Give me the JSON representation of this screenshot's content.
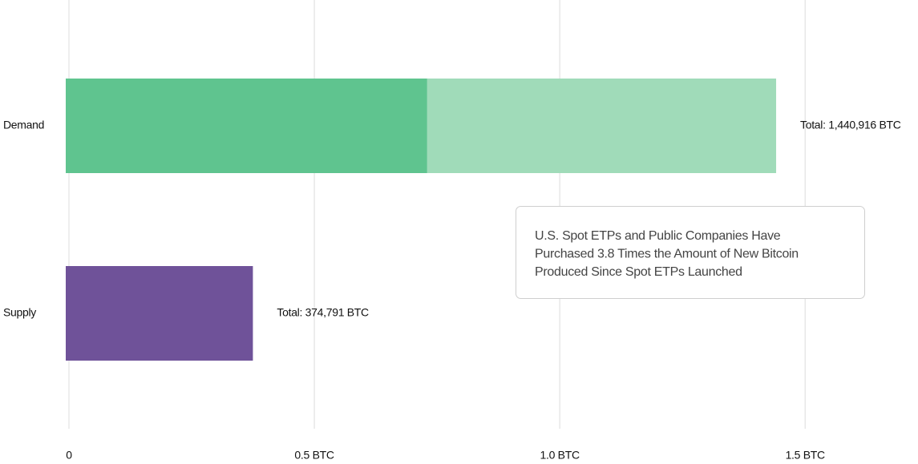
{
  "chart_data": {
    "type": "stacked-bar-horizontal",
    "categories": [
      "Demand",
      "Supply"
    ],
    "series": [
      {
        "color": "#5fc48f",
        "values": [
          0.73,
          null
        ]
      },
      {
        "color": "#a0dbb9",
        "values": [
          0.710916,
          null
        ]
      },
      {
        "color": "#6f5299",
        "values": [
          null,
          0.374791
        ]
      }
    ],
    "totals": {
      "values": [
        1.440916,
        0.374791
      ],
      "value_labels": [
        "Total: 1,440,916 BTC",
        "Total: 374,791 BTC"
      ]
    },
    "xlim": [
      0,
      1.73
    ],
    "xticks": [
      0,
      {
        "value": 0.5,
        "label": "0.5 BTC"
      },
      {
        "value": 1.0,
        "label": "1.0 BTC"
      },
      {
        "value": 1.5,
        "label": "1.5 BTC"
      }
    ],
    "grid": true,
    "annotation": [
      "U.S. Spot ETPs and Public Companies Have",
      "Purchased 3.8 Times the Amount of New Bitcoin",
      "Produced Since Spot ETPs Launched"
    ]
  }
}
